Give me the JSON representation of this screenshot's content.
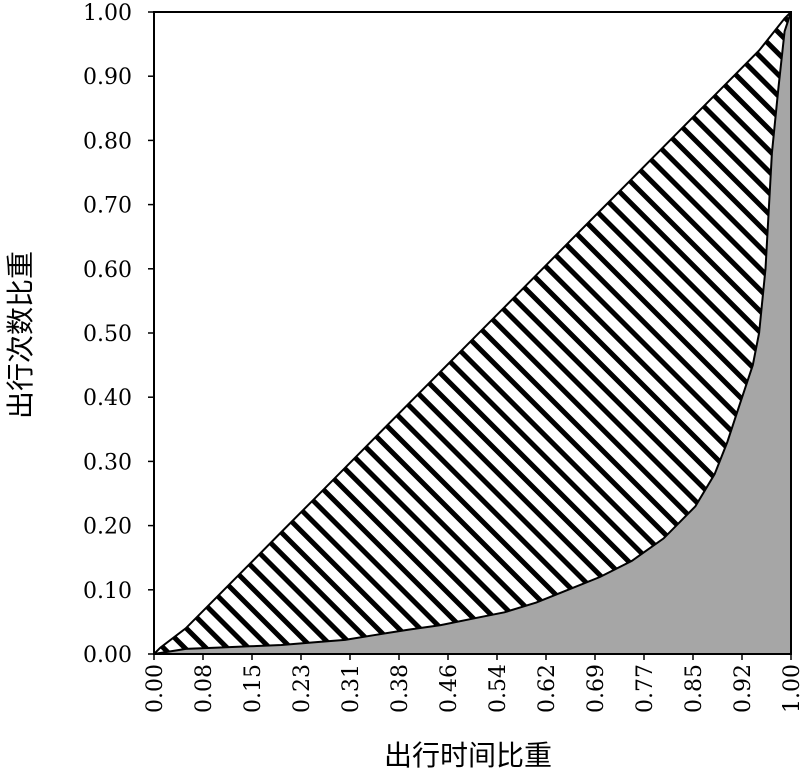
{
  "chart_data": {
    "type": "area",
    "title": "",
    "xlabel": "出行时间比重",
    "ylabel": "出行次数比重",
    "xlim": [
      0,
      1
    ],
    "ylim": [
      0,
      1
    ],
    "grid": false,
    "x_tick_labels": [
      "0.00",
      "0.08",
      "0.15",
      "0.23",
      "0.31",
      "0.38",
      "0.46",
      "0.54",
      "0.62",
      "0.69",
      "0.77",
      "0.85",
      "0.92",
      "1.00"
    ],
    "y_tick_labels": [
      "0.00",
      "0.10",
      "0.20",
      "0.30",
      "0.40",
      "0.50",
      "0.60",
      "0.70",
      "0.80",
      "0.90",
      "1.00"
    ],
    "series": [
      {
        "style": "hatched",
        "x": [
          0,
          0.01,
          0.05,
          0.1,
          0.15,
          0.2,
          0.25,
          0.3,
          0.35,
          0.4,
          0.45,
          0.5,
          0.55,
          0.6,
          0.65,
          0.7,
          0.75,
          0.8,
          0.85,
          0.9,
          0.95,
          0.99,
          1.0
        ],
        "y": [
          0,
          0.01,
          0.04,
          0.09,
          0.14,
          0.19,
          0.24,
          0.29,
          0.34,
          0.39,
          0.44,
          0.49,
          0.54,
          0.59,
          0.64,
          0.69,
          0.74,
          0.79,
          0.84,
          0.89,
          0.94,
          0.99,
          1.0
        ]
      },
      {
        "style": "filled",
        "x": [
          0,
          0.05,
          0.1,
          0.15,
          0.2,
          0.25,
          0.3,
          0.35,
          0.4,
          0.45,
          0.5,
          0.55,
          0.6,
          0.65,
          0.7,
          0.75,
          0.8,
          0.85,
          0.88,
          0.9,
          0.92,
          0.94,
          0.95,
          0.96,
          0.97,
          0.98,
          0.99,
          1.0
        ],
        "y": [
          0,
          0.008,
          0.01,
          0.012,
          0.014,
          0.018,
          0.022,
          0.03,
          0.038,
          0.045,
          0.055,
          0.065,
          0.08,
          0.1,
          0.12,
          0.145,
          0.18,
          0.23,
          0.28,
          0.33,
          0.39,
          0.45,
          0.5,
          0.6,
          0.78,
          0.88,
          0.97,
          1.0
        ]
      }
    ],
    "colors": {
      "fill": "#a6a6a6",
      "hatch": "#000000",
      "background": "#ffffff"
    }
  }
}
